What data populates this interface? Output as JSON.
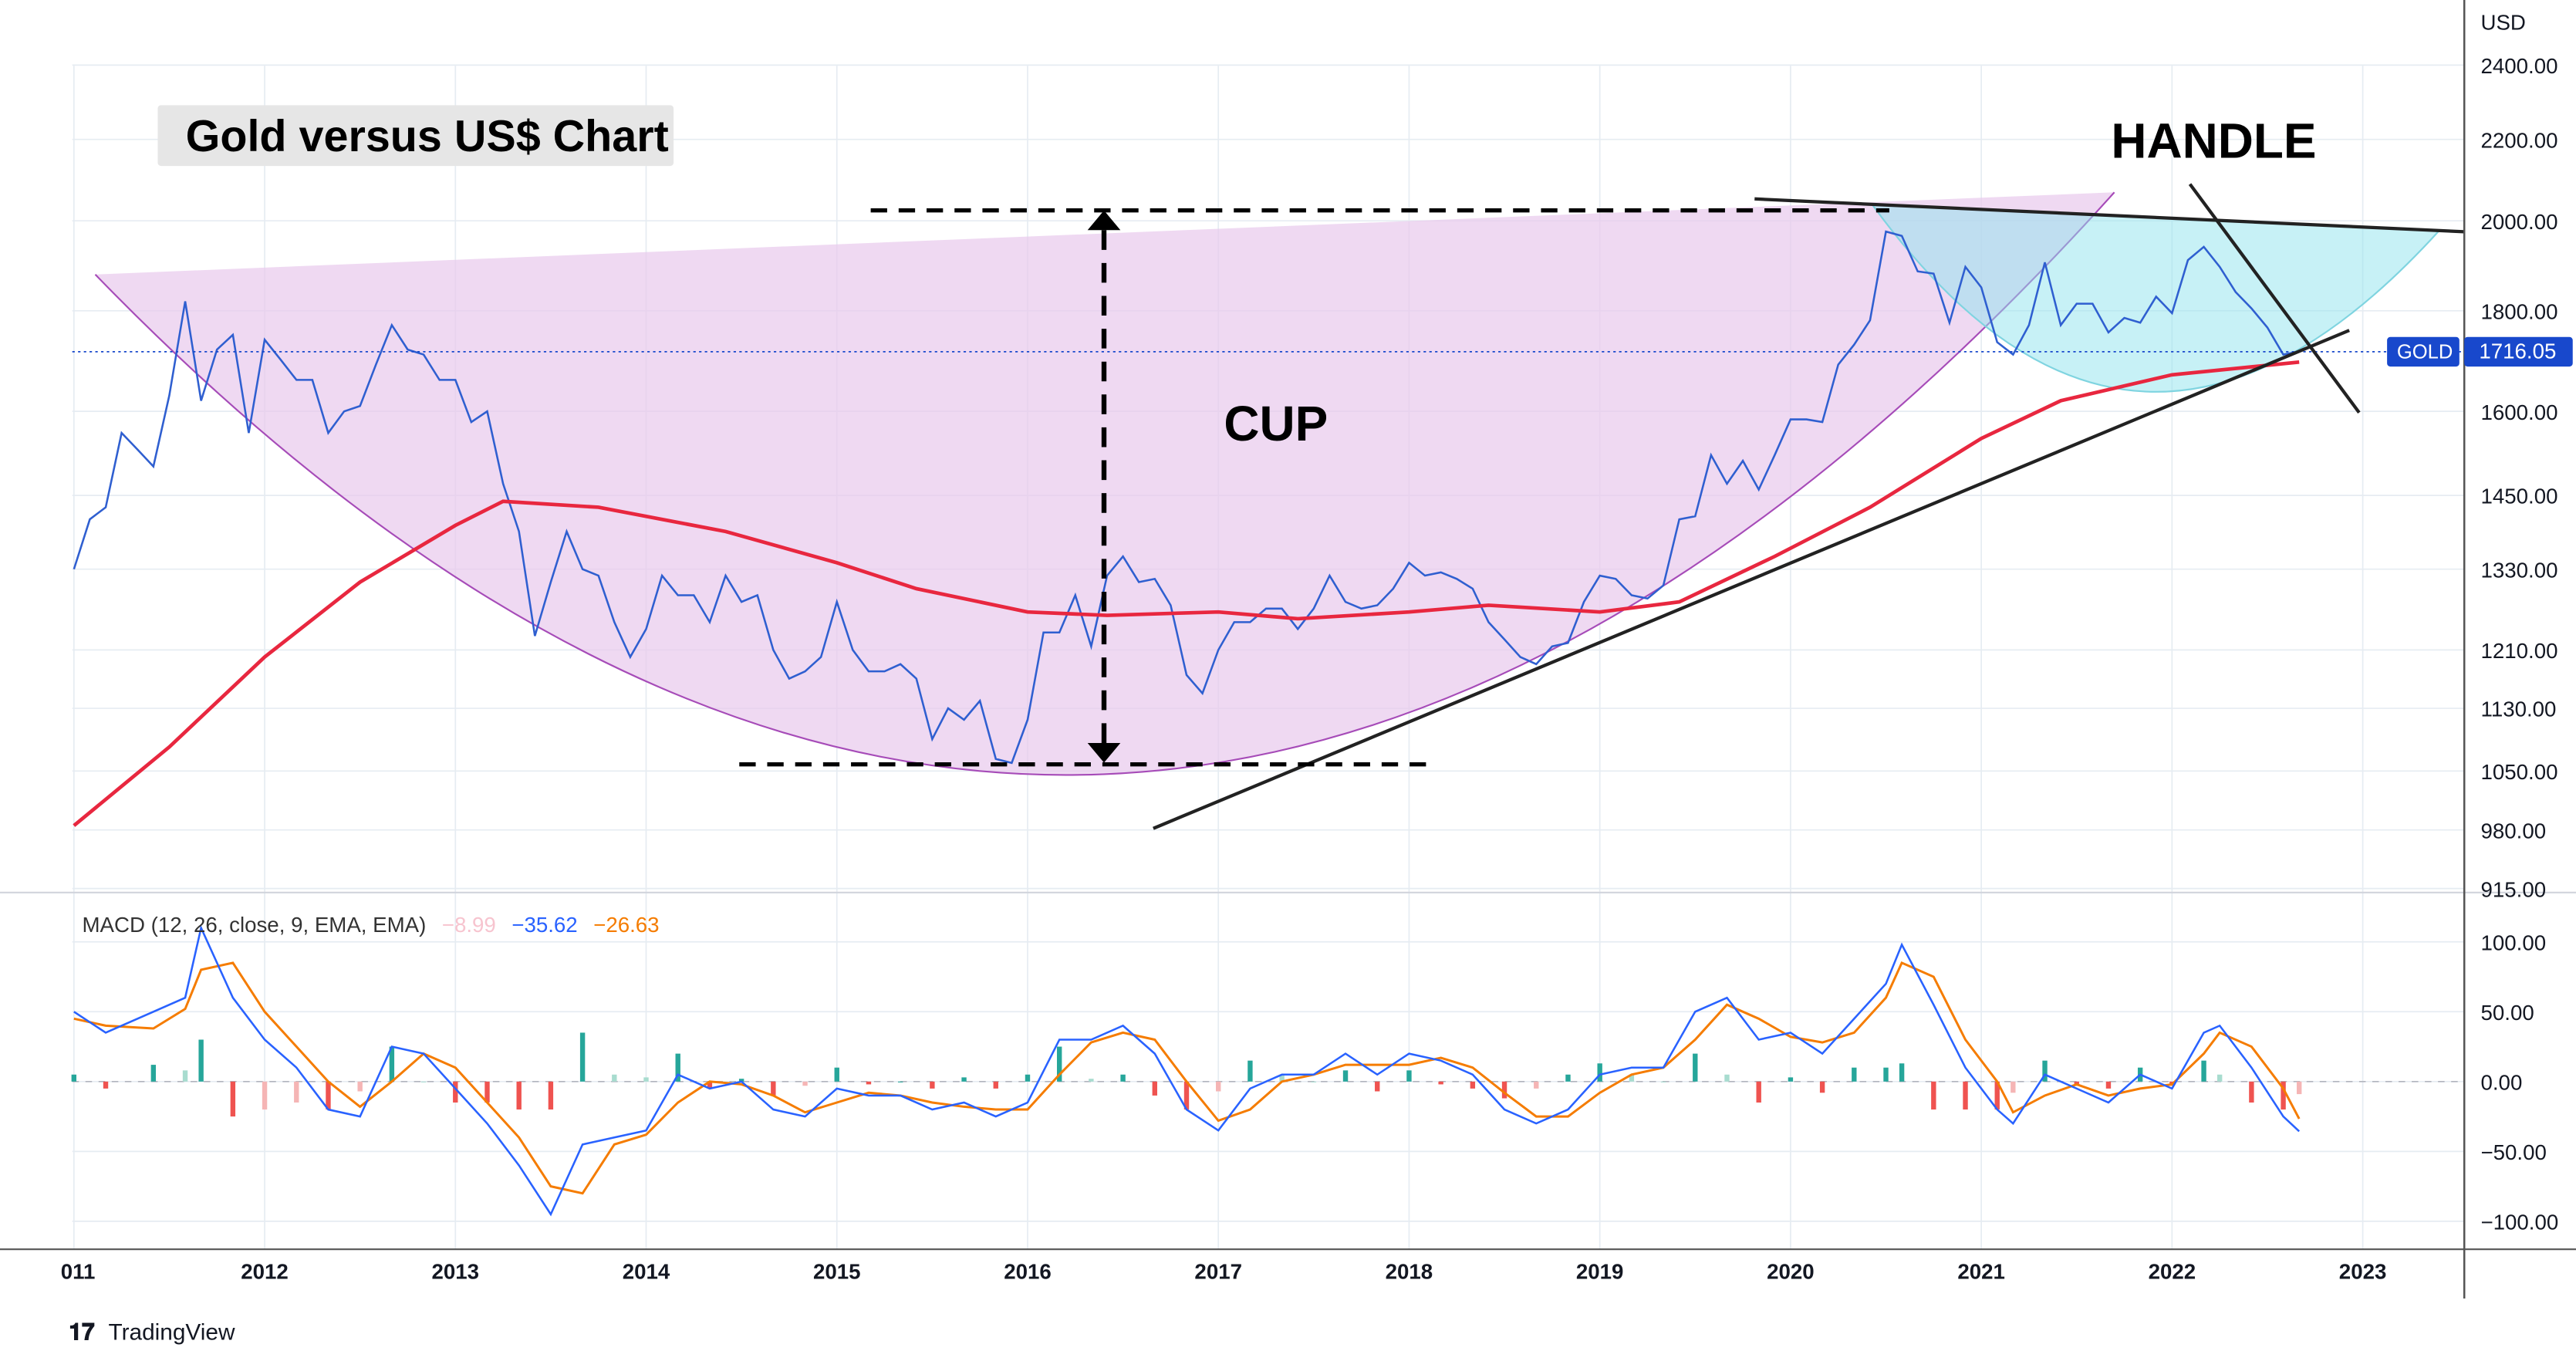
{
  "title": "Gold versus US$ Chart",
  "annotations": {
    "cup": "CUP",
    "handle": "HANDLE"
  },
  "branding": "TradingView",
  "symbol": {
    "label": "GOLD",
    "last_price": "1716.05",
    "color": "#1848cc"
  },
  "price_axis": {
    "unit": "USD",
    "ticks": [
      "2400.00",
      "2200.00",
      "2000.00",
      "1800.00",
      "1600.00",
      "1450.00",
      "1330.00",
      "1210.00",
      "1130.00",
      "1050.00",
      "980.00",
      "915.00"
    ]
  },
  "macd_axis": {
    "ticks": [
      "100.00",
      "50.00",
      "0.00",
      "−50.00",
      "−100.00"
    ]
  },
  "x_axis": {
    "ticks": [
      "011",
      "2012",
      "2013",
      "2014",
      "2015",
      "2016",
      "2017",
      "2018",
      "2019",
      "2020",
      "2021",
      "2022",
      "2023"
    ]
  },
  "macd_legend": {
    "label": "MACD (12, 26, close, 9, EMA, EMA)",
    "histogram": "−8.99",
    "macd": "−35.62",
    "signal": "−26.63",
    "colors": {
      "histogram": "#f7c4cf",
      "macd": "#2962ff",
      "signal": "#f57c00"
    }
  },
  "chart_data": [
    {
      "type": "line",
      "pane": "price",
      "yscale": "log",
      "ylim": [
        915,
        2500
      ],
      "xlim": [
        "2011-01",
        "2023-08"
      ],
      "grid": true,
      "series": [
        {
          "name": "GOLD",
          "color": "#2f5fd0",
          "start": "2011-01",
          "interval": "monthly",
          "values": [
            1330,
            1410,
            1430,
            1560,
            1530,
            1500,
            1630,
            1820,
            1620,
            1720,
            1750,
            1560,
            1740,
            1700,
            1660,
            1660,
            1560,
            1600,
            1610,
            1690,
            1770,
            1720,
            1710,
            1660,
            1660,
            1580,
            1600,
            1470,
            1390,
            1230,
            1310,
            1390,
            1330,
            1320,
            1250,
            1200,
            1240,
            1320,
            1290,
            1290,
            1250,
            1320,
            1280,
            1290,
            1210,
            1170,
            1180,
            1200,
            1280,
            1210,
            1180,
            1180,
            1190,
            1170,
            1090,
            1130,
            1115,
            1140,
            1065,
            1060,
            1115,
            1235,
            1235,
            1290,
            1215,
            1320,
            1350,
            1310,
            1315,
            1275,
            1175,
            1150,
            1210,
            1250,
            1250,
            1270,
            1270,
            1240,
            1270,
            1320,
            1280,
            1270,
            1275,
            1300,
            1340,
            1320,
            1325,
            1315,
            1300,
            1250,
            1225,
            1200,
            1190,
            1215,
            1220,
            1280,
            1320,
            1315,
            1290,
            1285,
            1305,
            1410,
            1415,
            1520,
            1470,
            1510,
            1460,
            1520,
            1585,
            1585,
            1580,
            1690,
            1730,
            1780,
            1975,
            1965,
            1885,
            1880,
            1775,
            1895,
            1850,
            1735,
            1710,
            1770,
            1905,
            1770,
            1815,
            1815,
            1755,
            1785,
            1775,
            1830,
            1795,
            1910,
            1940,
            1895,
            1840,
            1805,
            1765,
            1710,
            1716.05
          ]
        },
        {
          "color": "#e8273f",
          "points": [
            [
              "2011-01",
              985
            ],
            [
              "2011-07",
              1080
            ],
            [
              "2012-01",
              1200
            ],
            [
              "2012-07",
              1310
            ],
            [
              "2013-01",
              1400
            ],
            [
              "2013-04",
              1440
            ],
            [
              "2013-10",
              1430
            ],
            [
              "2014-06",
              1390
            ],
            [
              "2015-01",
              1340
            ],
            [
              "2015-06",
              1300
            ],
            [
              "2016-01",
              1265
            ],
            [
              "2016-06",
              1260
            ],
            [
              "2017-01",
              1265
            ],
            [
              "2017-06",
              1255
            ],
            [
              "2018-01",
              1265
            ],
            [
              "2018-06",
              1275
            ],
            [
              "2019-01",
              1265
            ],
            [
              "2019-06",
              1280
            ],
            [
              "2019-12",
              1350
            ],
            [
              "2020-06",
              1430
            ],
            [
              "2021-01",
              1550
            ],
            [
              "2021-06",
              1620
            ],
            [
              "2022-01",
              1670
            ],
            [
              "2022-09",
              1695
            ]
          ]
        }
      ]
    },
    {
      "type": "line",
      "pane": "macd",
      "ylim": [
        -110,
        115
      ],
      "grid": true,
      "dates": [
        "2011-01",
        "2011-03",
        "2011-06",
        "2011-08",
        "2011-09",
        "2011-11",
        "2012-01",
        "2012-03",
        "2012-05",
        "2012-07",
        "2012-09",
        "2012-11",
        "2013-01",
        "2013-03",
        "2013-05",
        "2013-07",
        "2013-09",
        "2013-11",
        "2014-01",
        "2014-03",
        "2014-05",
        "2014-07",
        "2014-09",
        "2014-11",
        "2015-01",
        "2015-03",
        "2015-05",
        "2015-07",
        "2015-09",
        "2015-11",
        "2016-01",
        "2016-03",
        "2016-05",
        "2016-07",
        "2016-09",
        "2016-11",
        "2017-01",
        "2017-03",
        "2017-05",
        "2017-07",
        "2017-09",
        "2017-11",
        "2018-01",
        "2018-03",
        "2018-05",
        "2018-07",
        "2018-09",
        "2018-11",
        "2019-01",
        "2019-03",
        "2019-05",
        "2019-07",
        "2019-09",
        "2019-11",
        "2020-01",
        "2020-03",
        "2020-05",
        "2020-07",
        "2020-08",
        "2020-10",
        "2020-12",
        "2021-02",
        "2021-03",
        "2021-05",
        "2021-07",
        "2021-09",
        "2021-11",
        "2022-01",
        "2022-03",
        "2022-04",
        "2022-06",
        "2022-08",
        "2022-09"
      ],
      "series": [
        {
          "name": "MACD",
          "color": "#2962ff",
          "values": [
            50,
            35,
            50,
            60,
            110,
            60,
            30,
            10,
            -20,
            -25,
            25,
            20,
            -5,
            -30,
            -60,
            -95,
            -45,
            -40,
            -35,
            5,
            -5,
            0,
            -20,
            -25,
            -5,
            -10,
            -10,
            -20,
            -15,
            -25,
            -15,
            30,
            30,
            40,
            20,
            -20,
            -35,
            -5,
            5,
            5,
            20,
            5,
            20,
            15,
            5,
            -20,
            -30,
            -20,
            5,
            10,
            10,
            50,
            60,
            30,
            35,
            20,
            45,
            70,
            98,
            55,
            10,
            -20,
            -30,
            5,
            -5,
            -15,
            5,
            -5,
            35,
            40,
            10,
            -25,
            -35.62
          ]
        },
        {
          "name": "Signal",
          "color": "#f57c00",
          "values": [
            45,
            40,
            38,
            52,
            80,
            85,
            50,
            25,
            0,
            -18,
            0,
            20,
            10,
            -15,
            -40,
            -75,
            -80,
            -45,
            -38,
            -15,
            0,
            -2,
            -10,
            -22,
            -15,
            -8,
            -10,
            -15,
            -18,
            -20,
            -20,
            5,
            28,
            35,
            30,
            0,
            -28,
            -20,
            0,
            5,
            12,
            12,
            12,
            17,
            10,
            -8,
            -25,
            -25,
            -8,
            5,
            10,
            30,
            55,
            45,
            32,
            28,
            35,
            60,
            85,
            75,
            30,
            0,
            -22,
            -10,
            -2,
            -10,
            -5,
            -2,
            20,
            35,
            25,
            -5,
            -26.63
          ]
        }
      ]
    }
  ]
}
